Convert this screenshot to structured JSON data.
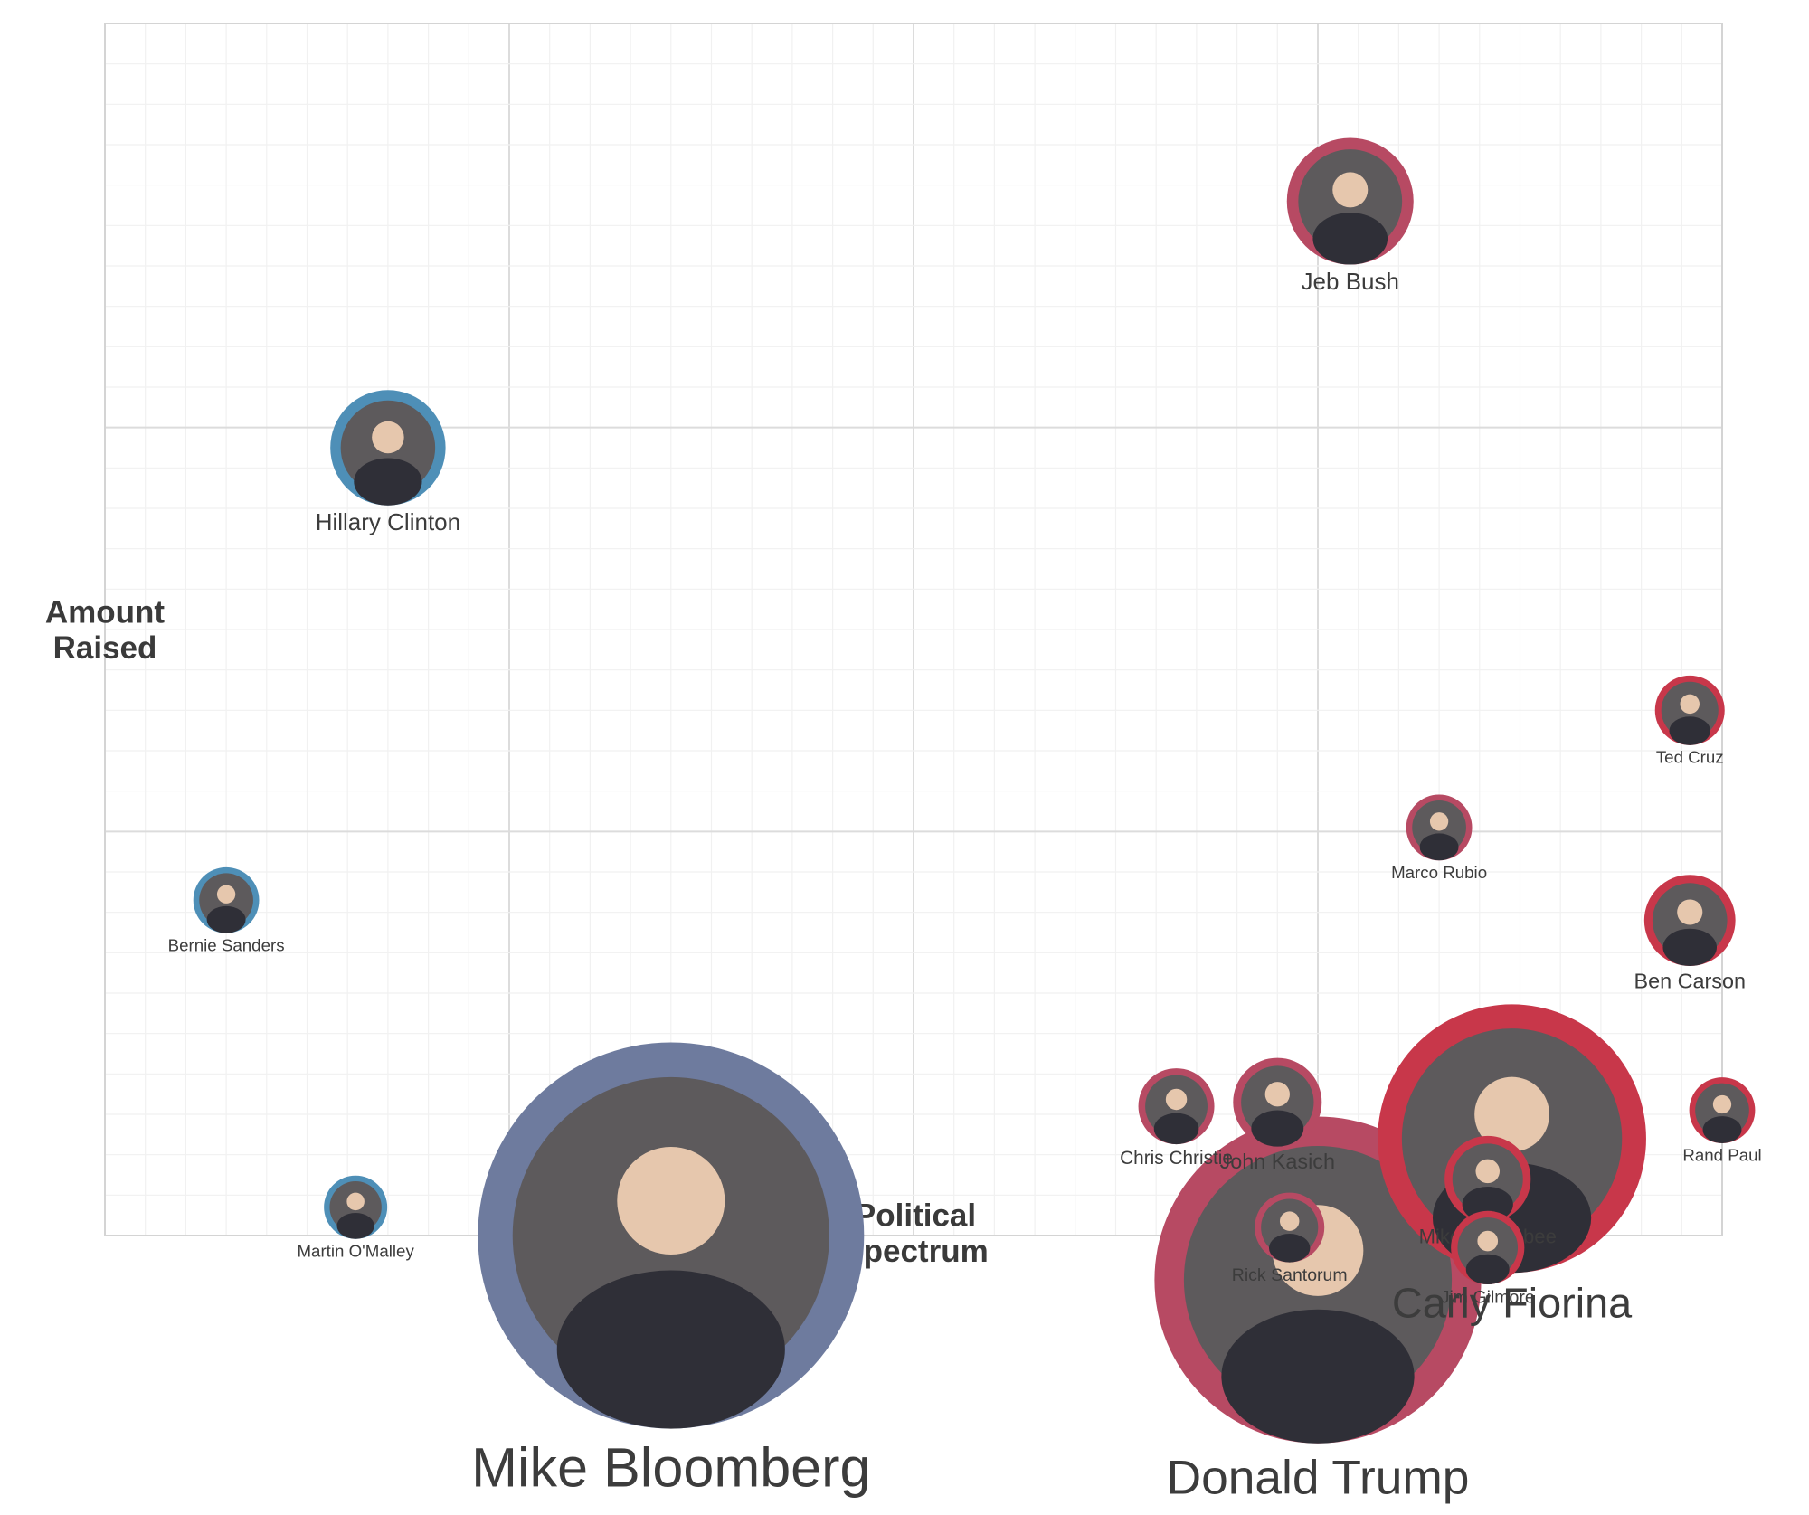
{
  "chart_data": {
    "type": "scatter",
    "title": "",
    "xlabel": "Political Spectrum",
    "ylabel": "Amount Raised",
    "xlim": [
      0,
      4
    ],
    "ylim": [
      0,
      3
    ],
    "grid": true,
    "party_colors": {
      "Democrat": "#4e8fb7",
      "Republican": "#b74a63",
      "Independent": "#6e7b9e"
    },
    "points": [
      {
        "name": "Jeb Bush",
        "party": "Republican",
        "x": 3.08,
        "y": 2.56,
        "size": 1.0,
        "ring": "#b74a63",
        "label_scale": 1.0
      },
      {
        "name": "Hillary Clinton",
        "party": "Democrat",
        "x": 0.7,
        "y": 1.95,
        "size": 0.91,
        "ring": "#4e8fb7",
        "label_scale": 1.0
      },
      {
        "name": "Ted Cruz",
        "party": "Republican",
        "x": 3.92,
        "y": 1.3,
        "size": 0.55,
        "ring": "#c8374a",
        "label_scale": 0.72
      },
      {
        "name": "Marco Rubio",
        "party": "Republican",
        "x": 3.3,
        "y": 1.01,
        "size": 0.52,
        "ring": "#b74a63",
        "label_scale": 0.72
      },
      {
        "name": "Ben Carson",
        "party": "Republican",
        "x": 3.92,
        "y": 0.78,
        "size": 0.72,
        "ring": "#c8374a",
        "label_scale": 0.9
      },
      {
        "name": "Bernie Sanders",
        "party": "Democrat",
        "x": 0.3,
        "y": 0.83,
        "size": 0.52,
        "ring": "#4e8fb7",
        "label_scale": 0.72
      },
      {
        "name": "Martin O'Malley",
        "party": "Democrat",
        "x": 0.62,
        "y": 0.07,
        "size": 0.5,
        "ring": "#4e8fb7",
        "label_scale": 0.72
      },
      {
        "name": "Mike Bloomberg",
        "party": "Independent",
        "x": 1.4,
        "y": 0.0,
        "size": 3.05,
        "ring": "#6e7b9e",
        "label_scale": 2.35
      },
      {
        "name": "Donald Trump",
        "party": "Republican",
        "x": 3.0,
        "y": -0.11,
        "size": 2.58,
        "ring": "#b74a63",
        "label_scale": 2.05
      },
      {
        "name": "Carly Fiorina",
        "party": "Republican",
        "x": 3.48,
        "y": 0.24,
        "size": 2.12,
        "ring": "#c8374a",
        "label_scale": 1.8
      },
      {
        "name": "Chris Christie",
        "party": "Republican",
        "x": 2.65,
        "y": 0.32,
        "size": 0.6,
        "ring": "#b74a63",
        "label_scale": 0.8
      },
      {
        "name": "John Kasich",
        "party": "Republican",
        "x": 2.9,
        "y": 0.33,
        "size": 0.7,
        "ring": "#b74a63",
        "label_scale": 0.9
      },
      {
        "name": "Rand Paul",
        "party": "Republican",
        "x": 4.0,
        "y": 0.31,
        "size": 0.52,
        "ring": "#c8374a",
        "label_scale": 0.72
      },
      {
        "name": "Mike Huckabee",
        "party": "Republican",
        "x": 3.42,
        "y": 0.14,
        "size": 0.68,
        "ring": "#c8374a",
        "label_scale": 0.85
      },
      {
        "name": "Rick Santorum",
        "party": "Republican",
        "x": 2.93,
        "y": 0.02,
        "size": 0.55,
        "ring": "#b74a63",
        "label_scale": 0.75
      },
      {
        "name": "Jim Gilmore",
        "party": "Republican",
        "x": 3.42,
        "y": -0.03,
        "size": 0.58,
        "ring": "#c8374a",
        "label_scale": 0.75
      }
    ]
  }
}
